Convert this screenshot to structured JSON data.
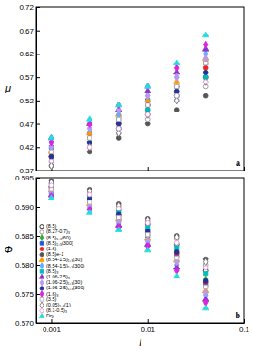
{
  "chart_data": [
    {
      "type": "scatter",
      "y_label": "μ",
      "annotation": "a",
      "log": "x",
      "tick_labels": "y",
      "xlim": [
        0.0007,
        0.1
      ],
      "xticks": [
        0.001,
        0.01,
        0.1
      ],
      "ylim": [
        0.37,
        0.72
      ],
      "yticks": [
        0.37,
        0.42,
        0.47,
        0.52,
        0.57,
        0.62,
        0.67,
        0.72
      ],
      "x": [
        0.001,
        0.0025,
        0.005,
        0.01,
        0.02,
        0.04
      ],
      "series": [
        {
          "color": "#000000",
          "marker": "open-circle",
          "values": [
            0.4,
            0.43,
            0.46,
            0.49,
            0.53,
            0.57
          ]
        },
        {
          "color": "#888888",
          "marker": "open-circle",
          "values": [
            0.39,
            0.42,
            0.45,
            0.48,
            0.52,
            0.55
          ]
        },
        {
          "color": "#33aa33",
          "marker": "diamond",
          "values": [
            0.41,
            0.44,
            0.47,
            0.5,
            0.54,
            0.58
          ]
        },
        {
          "color": "#2255dd",
          "marker": "square",
          "values": [
            0.42,
            0.45,
            0.48,
            0.52,
            0.55,
            0.6
          ]
        },
        {
          "color": "#ee2222",
          "marker": "circle",
          "values": [
            0.4,
            0.44,
            0.47,
            0.51,
            0.55,
            0.59
          ]
        },
        {
          "color": "#555555",
          "marker": "circle",
          "values": [
            0.38,
            0.41,
            0.44,
            0.47,
            0.5,
            0.53
          ]
        },
        {
          "color": "#ff9900",
          "marker": "triangle",
          "values": [
            0.41,
            0.45,
            0.49,
            0.52,
            0.56,
            0.61
          ]
        },
        {
          "color": "#66aaff",
          "marker": "diamond",
          "values": [
            0.43,
            0.46,
            0.49,
            0.53,
            0.57,
            0.62
          ]
        },
        {
          "color": "#00bbbb",
          "marker": "square",
          "values": [
            0.39,
            0.43,
            0.46,
            0.5,
            0.53,
            0.57
          ]
        },
        {
          "color": "#8833cc",
          "marker": "triangle",
          "values": [
            0.44,
            0.47,
            0.5,
            0.54,
            0.58,
            0.63
          ]
        },
        {
          "color": "#bb99ee",
          "marker": "diamond",
          "values": [
            0.42,
            0.46,
            0.5,
            0.53,
            0.57,
            0.61
          ]
        },
        {
          "color": "#223399",
          "marker": "circle",
          "values": [
            0.4,
            0.43,
            0.47,
            0.51,
            0.54,
            0.58
          ]
        },
        {
          "color": "#dd22dd",
          "marker": "diamond",
          "values": [
            0.43,
            0.47,
            0.51,
            0.55,
            0.59,
            0.64
          ]
        },
        {
          "color": "#aaaaaa",
          "marker": "open-square",
          "values": [
            0.41,
            0.44,
            0.48,
            0.51,
            0.55,
            0.6
          ]
        },
        {
          "color": "#666666",
          "marker": "open-diamond",
          "values": [
            0.38,
            0.42,
            0.45,
            0.49,
            0.52,
            0.56
          ]
        },
        {
          "color": "#ee88cc",
          "marker": "open-circle",
          "values": [
            0.39,
            0.42,
            0.46,
            0.49,
            0.53,
            0.56
          ]
        },
        {
          "color": "#22dddd",
          "marker": "triangle",
          "values": [
            0.44,
            0.48,
            0.51,
            0.55,
            0.6,
            0.66
          ]
        }
      ]
    },
    {
      "type": "scatter",
      "y_label": "Φ",
      "x_label": "I",
      "annotation": "b",
      "log": "x",
      "legend": "lower left",
      "xlim": [
        0.0007,
        0.1
      ],
      "xticks": [
        0.001,
        0.01,
        0.1
      ],
      "ylim": [
        0.57,
        0.595
      ],
      "yticks": [
        {
          "value": 0.57,
          "label": "0.570"
        },
        0.575,
        {
          "value": 0.58,
          "label": "0.580"
        },
        0.585,
        {
          "value": 0.59,
          "label": "0.590"
        },
        0.595
      ],
      "x": [
        0.001,
        0.0025,
        0.005,
        0.01,
        0.02,
        0.04
      ],
      "series": [
        {
          "name": "(8.5)",
          "color": "#000000",
          "marker": "open-circle",
          "values": [
            0.5935,
            0.592,
            0.5895,
            0.587,
            0.5835,
            0.579
          ]
        },
        {
          "name": "(8.27-0.7)₃",
          "color": "#888888",
          "marker": "open-circle",
          "values": [
            0.594,
            0.5925,
            0.59,
            0.5875,
            0.5845,
            0.58
          ]
        },
        {
          "name": "(8.5)₁,₃(60)",
          "color": "#33aa33",
          "marker": "diamond",
          "values": [
            0.593,
            0.5915,
            0.589,
            0.586,
            0.5825,
            0.5775
          ]
        },
        {
          "name": "(8.5)₁,₃(300)",
          "color": "#2255dd",
          "marker": "square",
          "values": [
            0.5925,
            0.591,
            0.588,
            0.585,
            0.5815,
            0.5765
          ]
        },
        {
          "name": "(1.6)",
          "color": "#ee2222",
          "marker": "circle",
          "values": [
            0.5932,
            0.5912,
            0.5885,
            0.5855,
            0.582,
            0.577
          ]
        },
        {
          "name": "(8.5)e-1",
          "color": "#555555",
          "marker": "circle",
          "values": [
            0.5945,
            0.593,
            0.5905,
            0.588,
            0.585,
            0.581
          ]
        },
        {
          "name": "(8.54-1.5)₁,₃(30)",
          "color": "#ff9900",
          "marker": "triangle",
          "values": [
            0.5928,
            0.5905,
            0.5878,
            0.5845,
            0.5808,
            0.5755
          ]
        },
        {
          "name": "(8.54-1.5)₁,₃(300)",
          "color": "#66aaff",
          "marker": "diamond",
          "values": [
            0.5922,
            0.59,
            0.5872,
            0.584,
            0.58,
            0.5748
          ]
        },
        {
          "name": "(8.5)₃",
          "color": "#00bbbb",
          "marker": "square",
          "values": [
            0.5938,
            0.5918,
            0.5893,
            0.5865,
            0.583,
            0.5785
          ]
        },
        {
          "name": "(1.06-2.5)₃",
          "color": "#8833cc",
          "marker": "triangle",
          "values": [
            0.592,
            0.5897,
            0.5868,
            0.5835,
            0.5795,
            0.574
          ]
        },
        {
          "name": "(1.06-2.5)₁,₃(30)",
          "color": "#bb99ee",
          "marker": "diamond",
          "values": [
            0.5926,
            0.5903,
            0.5875,
            0.5842,
            0.5805,
            0.5752
          ]
        },
        {
          "name": "(1.06-2.5)₁,₃(300)",
          "color": "#223399",
          "marker": "circle",
          "values": [
            0.5934,
            0.5914,
            0.5887,
            0.5858,
            0.5822,
            0.5772
          ]
        },
        {
          "name": "(1.6)₃",
          "color": "#dd22dd",
          "marker": "diamond",
          "values": [
            0.5918,
            0.5895,
            0.5865,
            0.5832,
            0.579,
            0.5735
          ]
        },
        {
          "name": "(3.5)",
          "color": "#aaaaaa",
          "marker": "open-square",
          "values": [
            0.593,
            0.5908,
            0.5882,
            0.5852,
            0.5812,
            0.5762
          ]
        },
        {
          "name": "(0.05)₁,₃(1)",
          "color": "#666666",
          "marker": "open-diamond",
          "values": [
            0.5942,
            0.5927,
            0.5902,
            0.5878,
            0.5848,
            0.5805
          ]
        },
        {
          "name": "(8.1-0.5)₃",
          "color": "#ee88cc",
          "marker": "open-circle",
          "values": [
            0.5937,
            0.5921,
            0.5897,
            0.5872,
            0.5838,
            0.5795
          ]
        },
        {
          "name": "Dry",
          "color": "#22dddd",
          "marker": "triangle",
          "values": [
            0.5915,
            0.589,
            0.586,
            0.5825,
            0.578,
            0.5725
          ]
        }
      ]
    }
  ]
}
